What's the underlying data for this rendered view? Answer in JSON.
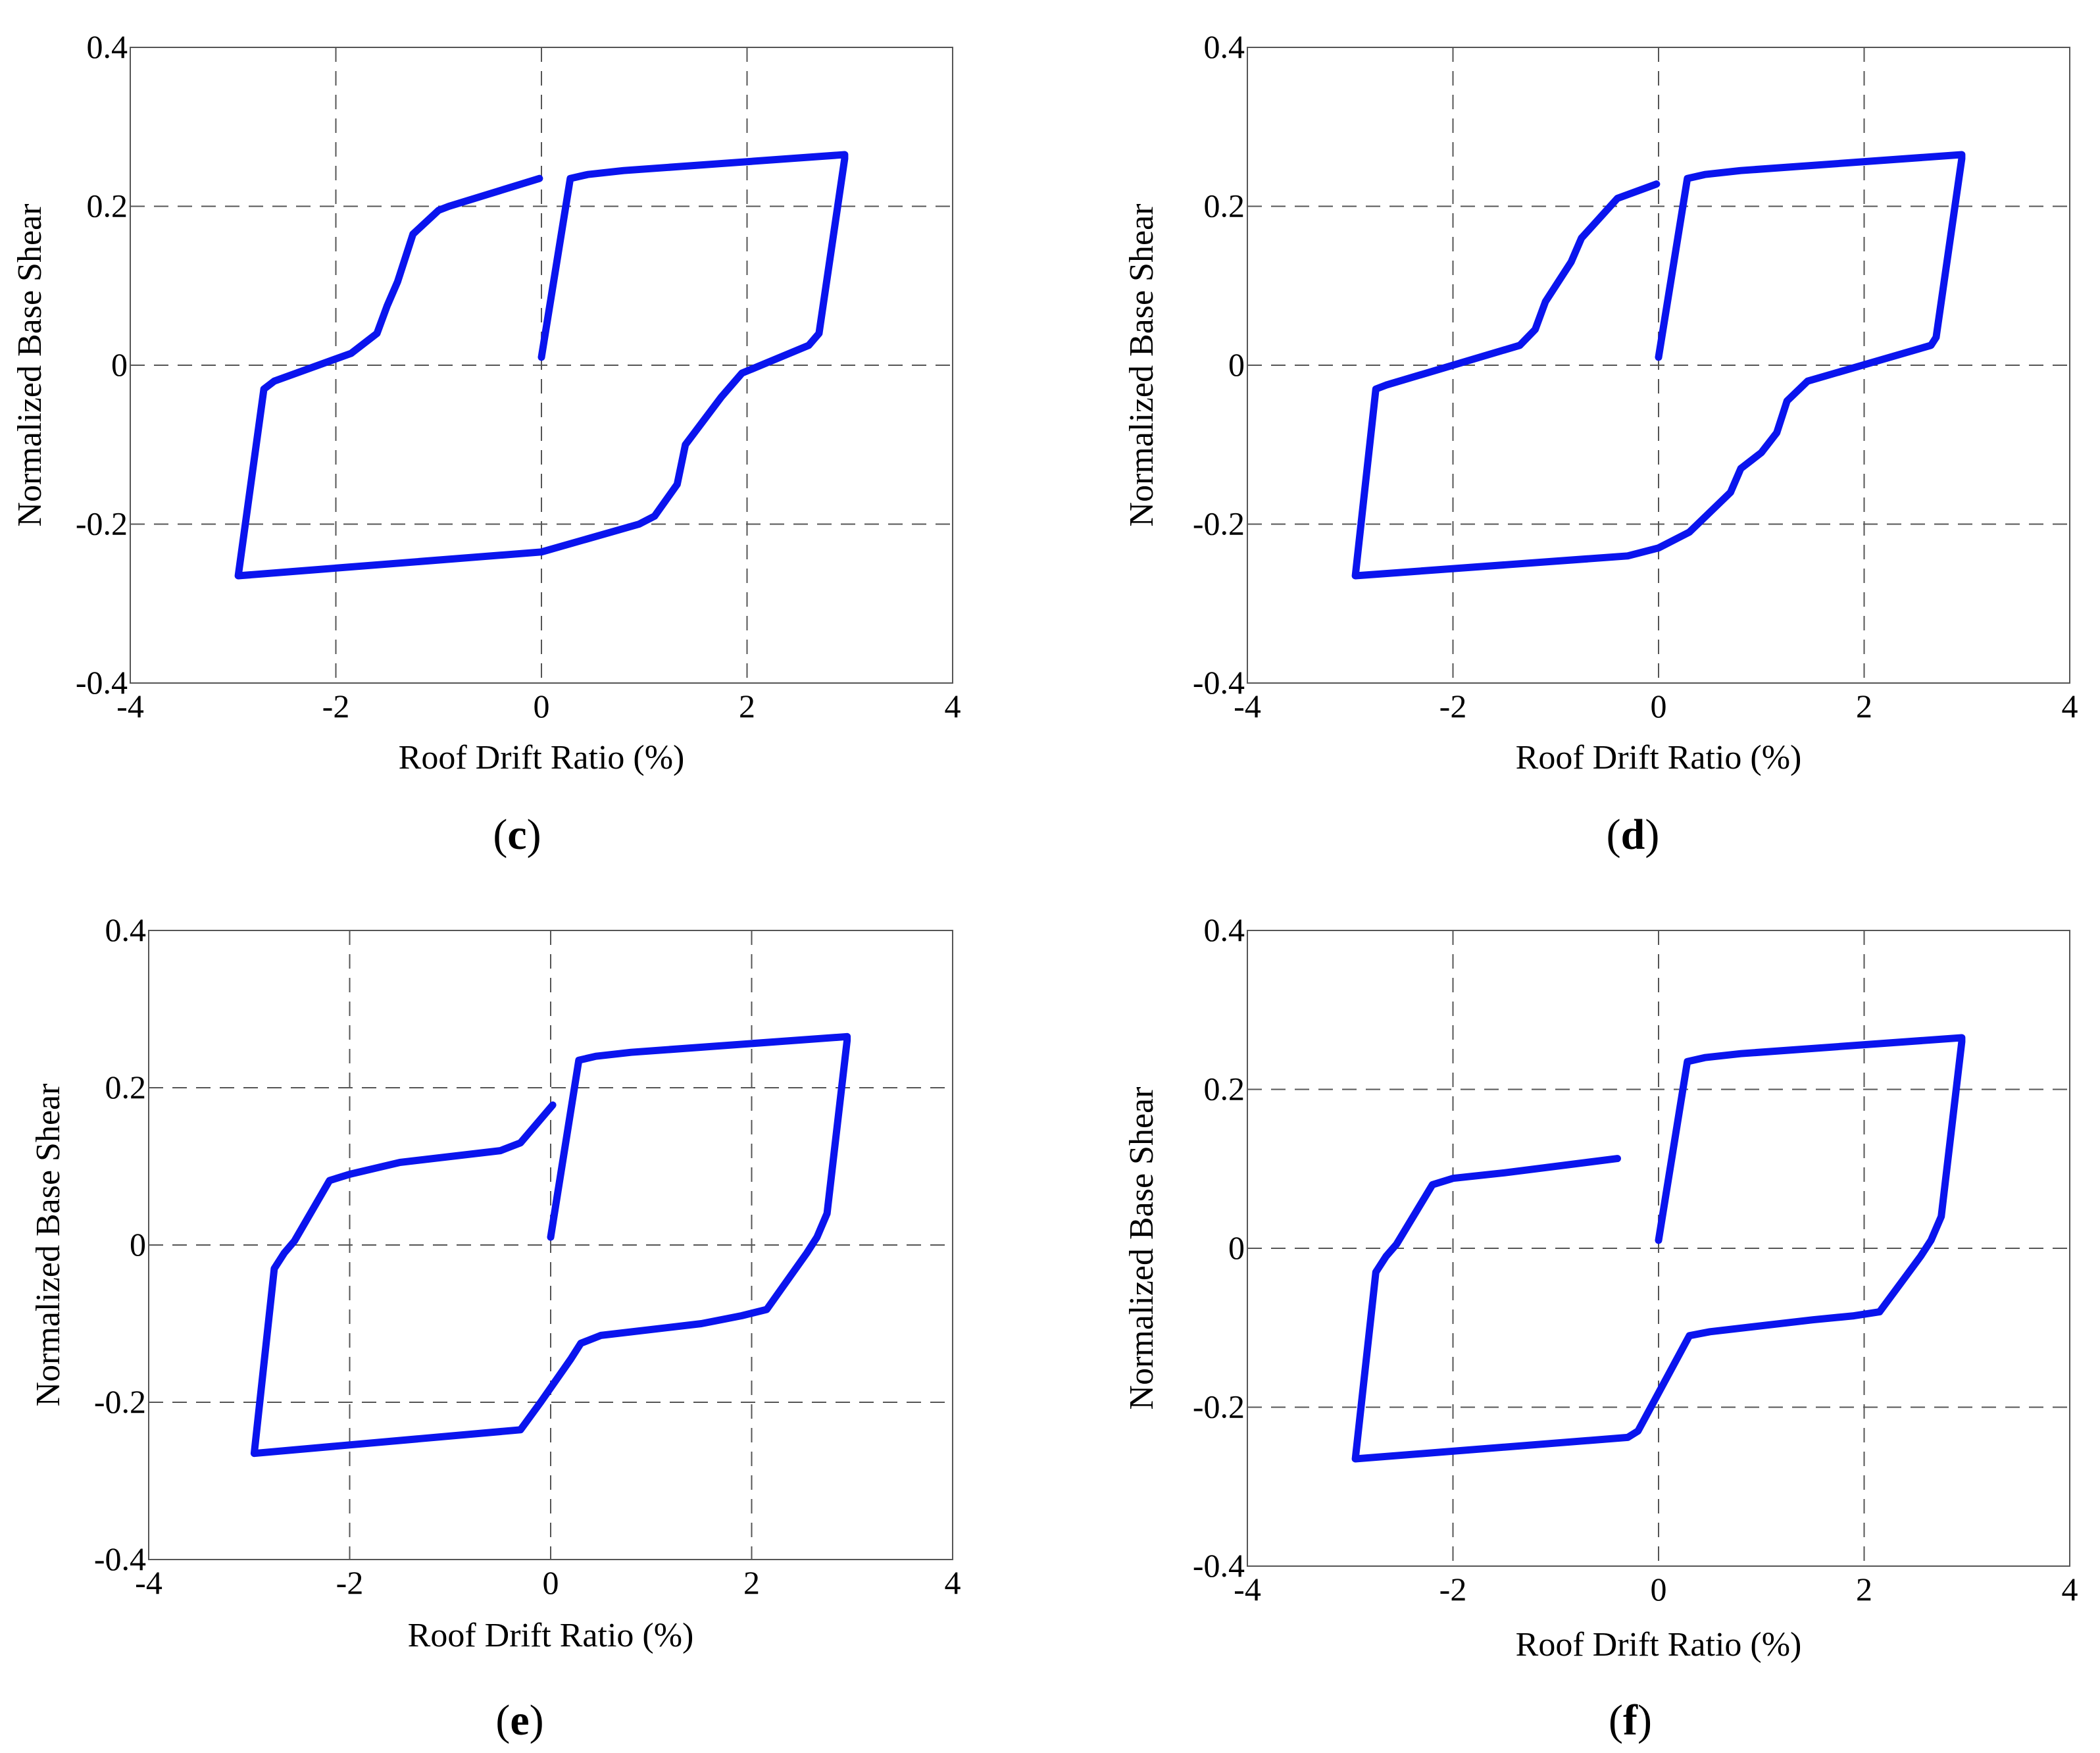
{
  "figure": {
    "colors": {
      "curve": "#0a14ee",
      "grid": "#555555",
      "text": "#000000"
    }
  },
  "chart_data": [
    {
      "id": "c",
      "type": "line",
      "panel_label": "c",
      "xlabel": "Roof Drift Ratio (%)",
      "ylabel": "Normalized Base Shear",
      "xlim": [
        -4,
        4
      ],
      "ylim": [
        -0.4,
        0.4
      ],
      "xticks": [
        -4,
        -2,
        0,
        2,
        4
      ],
      "xtick_labels": [
        "-4",
        "-2",
        "0",
        "2",
        "4"
      ],
      "yticks": [
        -0.4,
        -0.2,
        0,
        0.2,
        0.4
      ],
      "ytick_labels": [
        "-0.4",
        "-0.2",
        "0",
        "0.2",
        "0.4"
      ],
      "grid": true,
      "series": [
        {
          "name": "hysteresis",
          "x": [
            0.0,
            0.28,
            0.45,
            0.8,
            2.95,
            2.95,
            2.7,
            2.6,
            1.95,
            1.75,
            1.4,
            1.32,
            1.1,
            0.95,
            0.0,
            -2.95,
            -2.7,
            -2.6,
            -1.85,
            -1.6,
            -1.5,
            -1.4,
            -1.25,
            -1.0,
            -0.9,
            -0.02
          ],
          "y": [
            0.01,
            0.235,
            0.24,
            0.245,
            0.265,
            0.26,
            0.04,
            0.025,
            -0.01,
            -0.04,
            -0.1,
            -0.15,
            -0.19,
            -0.2,
            -0.235,
            -0.265,
            -0.03,
            -0.02,
            0.015,
            0.04,
            0.075,
            0.105,
            0.165,
            0.195,
            0.2,
            0.235
          ]
        }
      ]
    },
    {
      "id": "d",
      "type": "line",
      "panel_label": "d",
      "xlabel": "Roof Drift Ratio (%)",
      "ylabel": "Normalized Base Shear",
      "xlim": [
        -4,
        4
      ],
      "ylim": [
        -0.4,
        0.4
      ],
      "xticks": [
        -4,
        -2,
        0,
        2,
        4
      ],
      "xtick_labels": [
        "-4",
        "-2",
        "0",
        "2",
        "4"
      ],
      "yticks": [
        -0.4,
        -0.2,
        0,
        0.2,
        0.4
      ],
      "ytick_labels": [
        "-0.4",
        "-0.2",
        "0",
        "0.2",
        "0.4"
      ],
      "grid": true,
      "series": [
        {
          "name": "hysteresis",
          "x": [
            0.0,
            0.28,
            0.45,
            0.8,
            2.95,
            2.95,
            2.7,
            2.65,
            1.45,
            1.25,
            1.15,
            1.0,
            0.8,
            0.7,
            0.3,
            0.0,
            -0.3,
            -2.95,
            -2.75,
            -2.65,
            -1.35,
            -1.2,
            -1.1,
            -0.85,
            -0.75,
            -0.4,
            -0.02
          ],
          "y": [
            0.01,
            0.235,
            0.24,
            0.245,
            0.265,
            0.26,
            0.035,
            0.025,
            -0.02,
            -0.045,
            -0.085,
            -0.11,
            -0.13,
            -0.16,
            -0.21,
            -0.23,
            -0.24,
            -0.265,
            -0.03,
            -0.025,
            0.025,
            0.045,
            0.08,
            0.13,
            0.16,
            0.21,
            0.228
          ]
        }
      ]
    },
    {
      "id": "e",
      "type": "line",
      "panel_label": "e",
      "xlabel": "Roof Drift Ratio (%)",
      "ylabel": "Normalized Base Shear",
      "xlim": [
        -4,
        4
      ],
      "ylim": [
        -0.4,
        0.4
      ],
      "xticks": [
        -4,
        -2,
        0,
        2,
        4
      ],
      "xtick_labels": [
        "-4",
        "-2",
        "0",
        "2",
        "4"
      ],
      "yticks": [
        -0.4,
        -0.2,
        0,
        0.2,
        0.4
      ],
      "ytick_labels": [
        "-0.4",
        "-0.2",
        "0",
        "0.2",
        "0.4"
      ],
      "grid": true,
      "series": [
        {
          "name": "hysteresis",
          "x": [
            0.0,
            0.28,
            0.45,
            0.8,
            2.95,
            2.95,
            2.75,
            2.65,
            2.55,
            2.15,
            1.9,
            1.5,
            0.5,
            0.3,
            0.2,
            -0.1,
            -0.3,
            -2.95,
            -2.75,
            -2.65,
            -2.55,
            -2.2,
            -2.0,
            -1.5,
            -0.5,
            -0.3,
            0.02
          ],
          "y": [
            0.01,
            0.235,
            0.24,
            0.245,
            0.265,
            0.26,
            0.04,
            0.01,
            -0.01,
            -0.082,
            -0.09,
            -0.1,
            -0.115,
            -0.125,
            -0.145,
            -0.2,
            -0.235,
            -0.265,
            -0.03,
            -0.01,
            0.005,
            0.082,
            0.09,
            0.105,
            0.12,
            0.13,
            0.178
          ]
        }
      ]
    },
    {
      "id": "f",
      "type": "line",
      "panel_label": "f",
      "xlabel": "Roof Drift Ratio (%)",
      "ylabel": "Normalized Base Shear",
      "xlim": [
        -4,
        4
      ],
      "ylim": [
        -0.4,
        0.4
      ],
      "xticks": [
        -4,
        -2,
        0,
        2,
        4
      ],
      "xtick_labels": [
        "-4",
        "-2",
        "0",
        "2",
        "4"
      ],
      "yticks": [
        -0.4,
        -0.2,
        0,
        0.2,
        0.4
      ],
      "ytick_labels": [
        "-0.4",
        "-0.2",
        "0",
        "0.2",
        "0.4"
      ],
      "grid": true,
      "series": [
        {
          "name": "hysteresis",
          "x": [
            0.0,
            0.28,
            0.45,
            0.8,
            2.95,
            2.95,
            2.75,
            2.65,
            2.55,
            2.15,
            1.9,
            1.5,
            0.5,
            0.3,
            -0.2,
            -0.3,
            -2.95,
            -2.75,
            -2.65,
            -2.55,
            -2.2,
            -2.0,
            -1.5,
            -0.4
          ],
          "y": [
            0.01,
            0.235,
            0.24,
            0.245,
            0.265,
            0.26,
            0.04,
            0.01,
            -0.01,
            -0.08,
            -0.085,
            -0.09,
            -0.105,
            -0.11,
            -0.23,
            -0.238,
            -0.265,
            -0.03,
            -0.01,
            0.005,
            0.08,
            0.088,
            0.095,
            0.113
          ]
        }
      ]
    }
  ]
}
